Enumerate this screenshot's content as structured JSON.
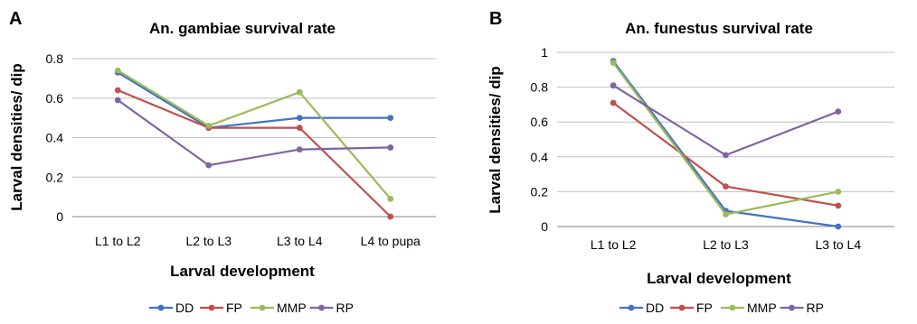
{
  "chart_data": [
    {
      "panel_label": "A",
      "type": "line",
      "title": "An. gambiae survival rate",
      "xlabel": "Larval development",
      "ylabel": "Larval densities/ dip",
      "categories": [
        "L1 to L2",
        "L2 to L3",
        "L3 to L4",
        "L4 to pupa"
      ],
      "ylim": [
        0,
        0.8
      ],
      "yticks": [
        0,
        0.2,
        0.4,
        0.6,
        0.8
      ],
      "ytick_labels": [
        "0",
        "0.2",
        "0.4",
        "0.6",
        "0.8"
      ],
      "grid": true,
      "legend_position": "bottom",
      "series": [
        {
          "name": "DD",
          "color": "#4472C4",
          "values": [
            0.73,
            0.45,
            0.5,
            0.5
          ]
        },
        {
          "name": "FP",
          "color": "#C0504D",
          "values": [
            0.64,
            0.45,
            0.45,
            0.0
          ]
        },
        {
          "name": "MMP",
          "color": "#9BBB59",
          "values": [
            0.74,
            0.46,
            0.63,
            0.09
          ]
        },
        {
          "name": "RP",
          "color": "#8064A2",
          "values": [
            0.59,
            0.26,
            0.34,
            0.35
          ]
        }
      ]
    },
    {
      "panel_label": "B",
      "type": "line",
      "title": "An. funestus survival rate",
      "xlabel": "Larval development",
      "ylabel": "Larval densities/ dip",
      "categories": [
        "L1 to L2",
        "L2 to L3",
        "L3 to L4"
      ],
      "ylim": [
        0,
        1
      ],
      "yticks": [
        0,
        0.2,
        0.4,
        0.6,
        0.8,
        1
      ],
      "ytick_labels": [
        "0",
        "0.2",
        "0.4",
        "0.6",
        "0.8",
        "1"
      ],
      "grid": true,
      "legend_position": "bottom",
      "series": [
        {
          "name": "DD",
          "color": "#4472C4",
          "values": [
            0.95,
            0.09,
            0.0
          ]
        },
        {
          "name": "FP",
          "color": "#C0504D",
          "values": [
            0.71,
            0.23,
            0.12
          ]
        },
        {
          "name": "MMP",
          "color": "#9BBB59",
          "values": [
            0.94,
            0.07,
            0.2
          ]
        },
        {
          "name": "RP",
          "color": "#8064A2",
          "values": [
            0.81,
            0.41,
            0.66
          ]
        }
      ]
    }
  ]
}
